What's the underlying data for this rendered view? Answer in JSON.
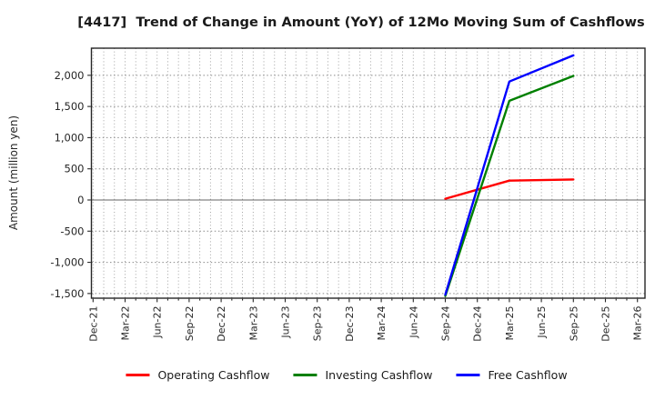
{
  "window": {
    "background": "#ffffff"
  },
  "chart_data": {
    "type": "line",
    "title": "[4417]  Trend of Change in Amount (YoY) of 12Mo Moving Sum of Cashflows",
    "xlabel": "",
    "ylabel": "Amount (million yen)",
    "grid": "on",
    "legend_position": "bottom center",
    "ylim": [
      -1575,
      2435
    ],
    "y_ticks": [
      {
        "value": 2000,
        "label": "2,000"
      },
      {
        "value": 1500,
        "label": "1,500"
      },
      {
        "value": 1000,
        "label": "1,000"
      },
      {
        "value": 500,
        "label": "500"
      },
      {
        "value": 0,
        "label": "0"
      },
      {
        "value": -500,
        "label": "-500"
      },
      {
        "value": -1000,
        "label": "-1,000"
      },
      {
        "value": -1500,
        "label": "-1,500"
      }
    ],
    "x_tick_labels": [
      "Dec-21",
      "Mar-22",
      "Jun-22",
      "Sep-22",
      "Dec-22",
      "Mar-23",
      "Jun-23",
      "Sep-23",
      "Dec-23",
      "Mar-24",
      "Jun-24",
      "Sep-24",
      "Dec-24",
      "Mar-25",
      "Jun-25",
      "Sep-25",
      "Dec-25",
      "Mar-26"
    ],
    "x_minor_per_quarter": 3,
    "axis_color": "#262626",
    "gridline_color": "#999999",
    "zero_line_color": "#666666",
    "series": [
      {
        "name": "Operating Cashflow",
        "color": "#ff0000",
        "x": [
          "Sep-24",
          "Mar-25",
          "Sep-25"
        ],
        "values": [
          20,
          310,
          330
        ]
      },
      {
        "name": "Investing Cashflow",
        "color": "#008000",
        "x": [
          "Sep-24",
          "Mar-25",
          "Sep-25"
        ],
        "values": [
          -1540,
          1590,
          1990
        ]
      },
      {
        "name": "Free Cashflow",
        "color": "#0000ff",
        "x": [
          "Sep-24",
          "Mar-25",
          "Sep-25"
        ],
        "values": [
          -1520,
          1900,
          2320
        ]
      }
    ]
  }
}
